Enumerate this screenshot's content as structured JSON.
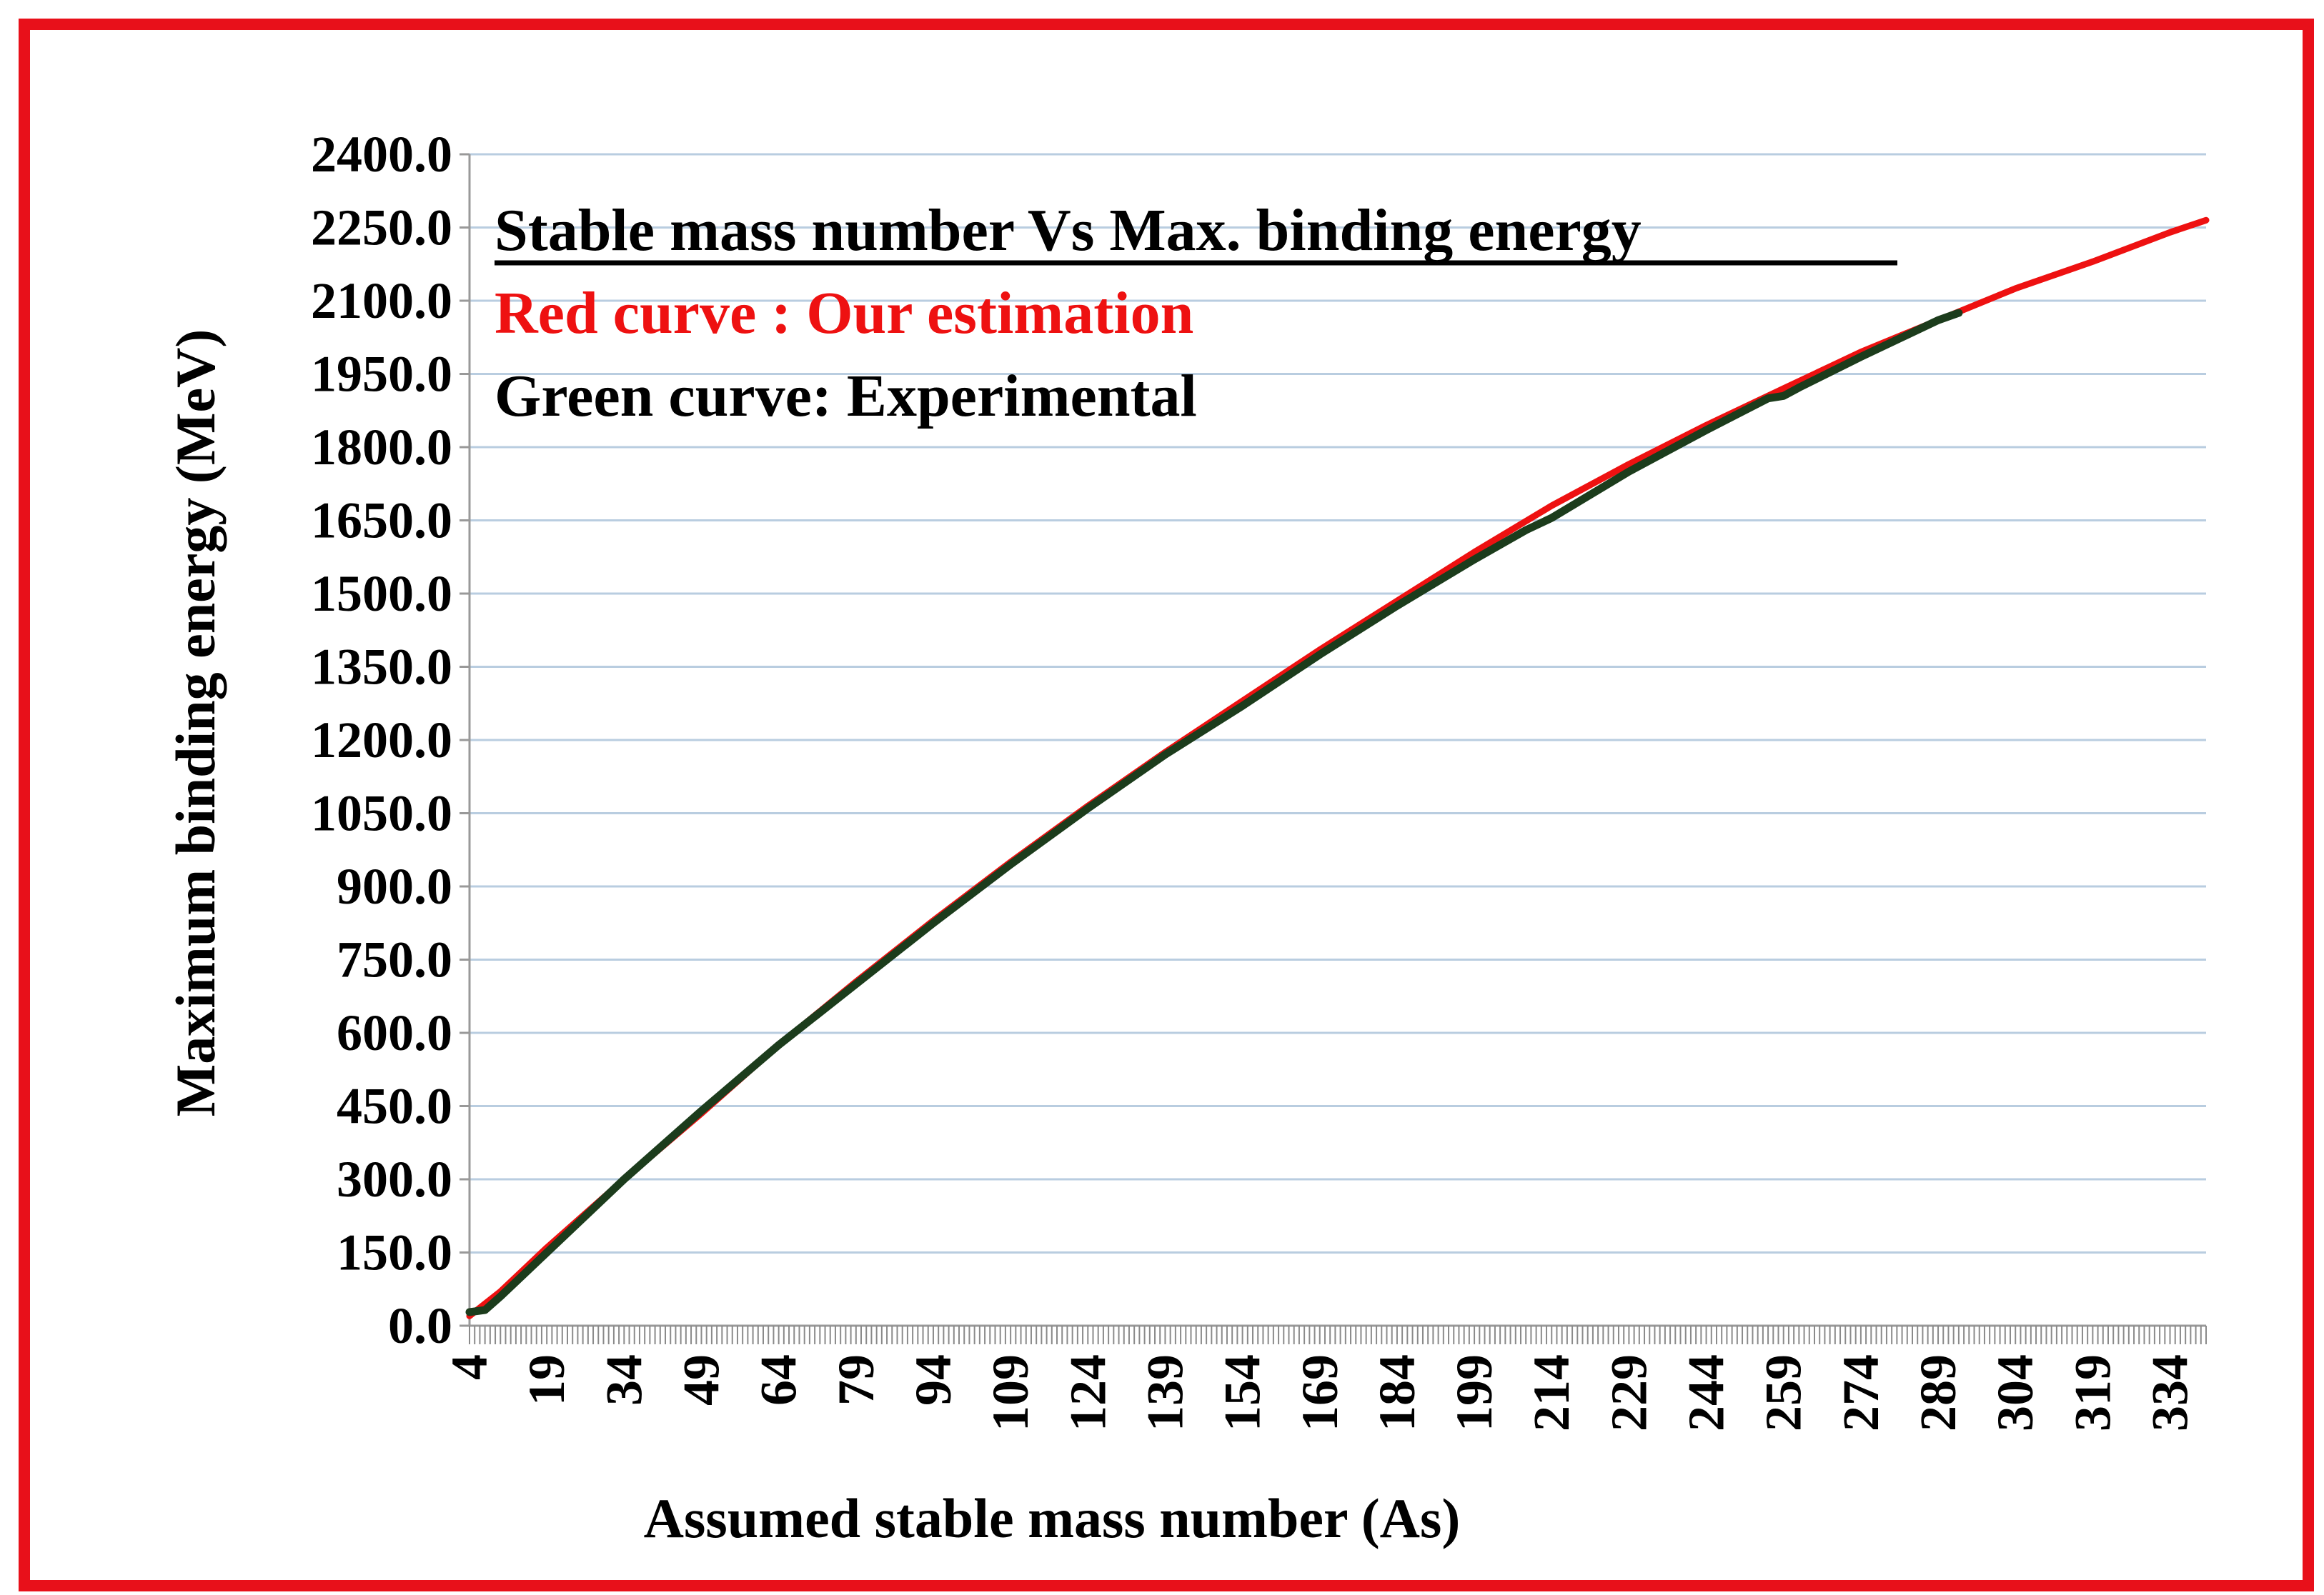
{
  "chart_data": {
    "type": "line",
    "xlabel": "Assumed stable mass number (As)",
    "ylabel": "Maximum binding energy (MeV)",
    "xlim": [
      4,
      341
    ],
    "ylim": [
      0,
      2400
    ],
    "x_ticks": [
      "4",
      "19",
      "34",
      "49",
      "64",
      "79",
      "94",
      "109",
      "124",
      "139",
      "154",
      "169",
      "184",
      "199",
      "214",
      "229",
      "244",
      "259",
      "274",
      "289",
      "304",
      "319",
      "334"
    ],
    "y_ticks": [
      "0.0",
      "150.0",
      "300.0",
      "450.0",
      "600.0",
      "750.0",
      "900.0",
      "1050.0",
      "1200.0",
      "1350.0",
      "1500.0",
      "1650.0",
      "1800.0",
      "1950.0",
      "2100.0",
      "2250.0",
      "2400.0"
    ],
    "grid": "horizontal",
    "annotations": {
      "title": "Stable mass number  Vs  Max. binding energy",
      "red_note": "Red curve : Our estimation",
      "green_note": "Green curve: Experimental"
    },
    "series": [
      {
        "color": "#ee1111",
        "x": [
          4,
          10,
          19,
          34,
          49,
          64,
          79,
          94,
          109,
          124,
          139,
          154,
          169,
          184,
          199,
          214,
          229,
          244,
          259,
          274,
          289,
          304,
          319,
          334,
          341
        ],
        "y": [
          20,
          70,
          160,
          300,
          435,
          575,
          705,
          830,
          950,
          1065,
          1175,
          1280,
          1385,
          1485,
          1585,
          1680,
          1765,
          1845,
          1920,
          1995,
          2060,
          2125,
          2180,
          2240,
          2265
        ]
      },
      {
        "color": "#1c3c1c",
        "x": [
          4,
          7,
          10,
          19,
          34,
          49,
          64,
          79,
          94,
          109,
          124,
          139,
          154,
          169,
          184,
          199,
          209,
          214,
          229,
          244,
          256,
          259,
          262,
          274,
          289,
          293
        ],
        "y": [
          28,
          32,
          60,
          150,
          300,
          440,
          575,
          700,
          825,
          945,
          1060,
          1170,
          1270,
          1375,
          1475,
          1570,
          1630,
          1655,
          1750,
          1835,
          1900,
          1905,
          1922,
          1985,
          2060,
          2075
        ]
      }
    ]
  }
}
